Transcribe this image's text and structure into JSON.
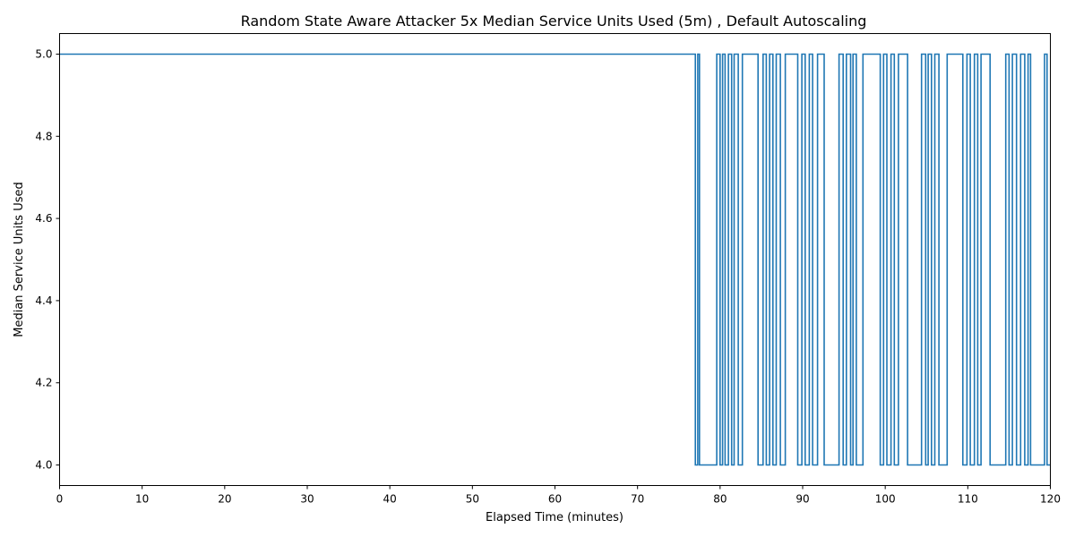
{
  "chart_data": {
    "type": "line",
    "title": "Random State Aware Attacker 5x Median Service Units Used (5m) , Default Autoscaling",
    "xlabel": "Elapsed Time (minutes)",
    "ylabel": "Median Service Units Used",
    "xlim": [
      0,
      120
    ],
    "ylim": [
      3.95,
      5.05
    ],
    "xticks": [
      0,
      10,
      20,
      30,
      40,
      50,
      60,
      70,
      80,
      90,
      100,
      110,
      120
    ],
    "yticks": [
      4.0,
      4.2,
      4.4,
      4.6,
      4.8,
      5.0
    ],
    "ytick_labels": [
      "4.0",
      "4.2",
      "4.4",
      "4.6",
      "4.8",
      "5.0"
    ],
    "grid": false,
    "legend": "none",
    "colors": {
      "series": "#1f77b4"
    },
    "series": [
      {
        "step": "post",
        "x": [
          0,
          77.0,
          77.3,
          77.5,
          79.6,
          80.0,
          80.3,
          80.6,
          81.0,
          81.4,
          81.7,
          82.2,
          82.7,
          84.6,
          85.2,
          85.6,
          86.0,
          86.4,
          86.8,
          87.3,
          87.9,
          89.4,
          89.9,
          90.3,
          90.8,
          91.2,
          91.8,
          92.6,
          94.4,
          94.9,
          95.3,
          95.8,
          96.1,
          96.5,
          97.3,
          99.4,
          99.8,
          100.2,
          100.7,
          101.1,
          101.6,
          102.7,
          104.4,
          104.9,
          105.2,
          105.6,
          106.0,
          106.5,
          107.5,
          109.4,
          109.9,
          110.3,
          110.8,
          111.2,
          111.6,
          112.7,
          114.6,
          115.0,
          115.4,
          115.9,
          116.4,
          116.9,
          117.3,
          117.6,
          119.3,
          119.6,
          120
        ]
      }
    ]
  }
}
